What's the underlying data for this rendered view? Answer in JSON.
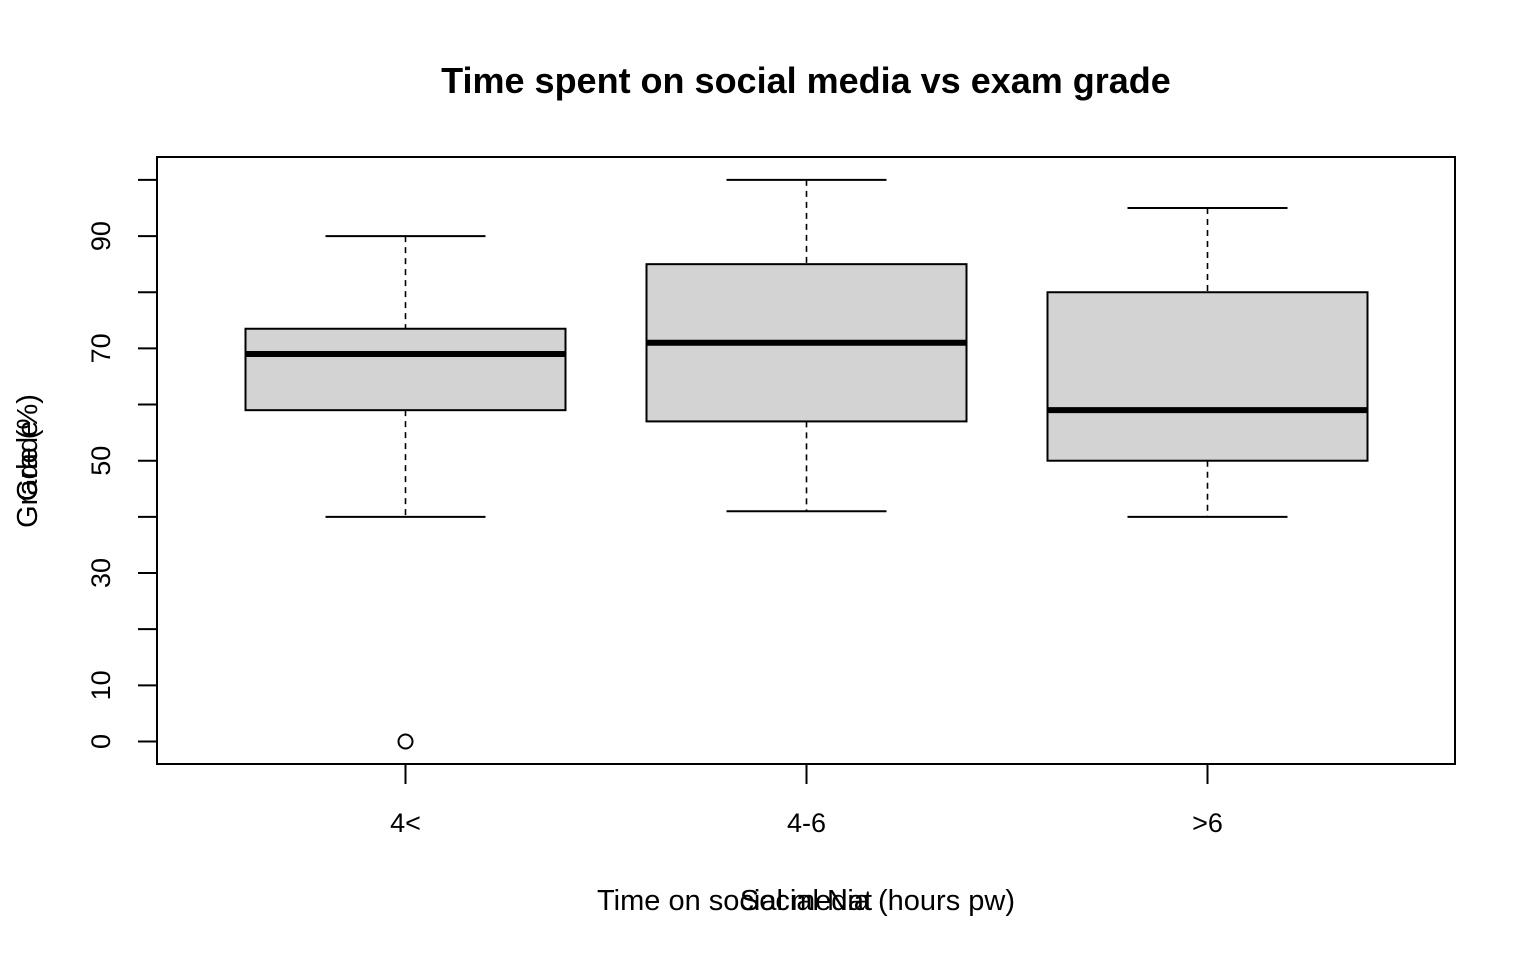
{
  "chart_data": {
    "type": "boxplot",
    "title": "Time spent on social media vs exam grade",
    "xlabel": "Time on social media (hours pw)",
    "xlabel_overlap": "Social Nat",
    "ylabel": "Grade (%)",
    "ylabel_overlap": "Grade",
    "categories": [
      "4<",
      "4-6",
      ">6"
    ],
    "boxes": [
      {
        "min": 40,
        "q1": 59,
        "median": 69,
        "q3": 73.5,
        "max": 90,
        "outliers": [
          0
        ]
      },
      {
        "min": 41,
        "q1": 57,
        "median": 71,
        "q3": 85,
        "max": 100,
        "outliers": []
      },
      {
        "min": 40,
        "q1": 50,
        "median": 59,
        "q3": 80,
        "max": 95,
        "outliers": []
      }
    ],
    "ylim": [
      -4,
      104
    ],
    "yticks": [
      0,
      10,
      20,
      30,
      40,
      50,
      60,
      70,
      80,
      90,
      100
    ],
    "yticklabels": [
      "0",
      "10",
      "",
      "30",
      "",
      "50",
      "",
      "70",
      "",
      "90",
      ""
    ],
    "box_fill": "#d3d3d3",
    "grid": false
  }
}
